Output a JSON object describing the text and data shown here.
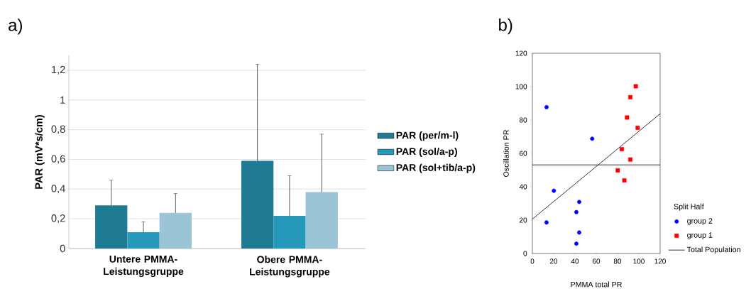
{
  "chart_data": [
    {
      "type": "bar",
      "title": "a)",
      "ylabel": "PAR (mV*s/cm)",
      "categories": [
        "Untere PMMA-Leistungsgruppe",
        "Obere PMMA-Leistungsgruppe"
      ],
      "series": [
        {
          "name": "PAR (per/m-l)",
          "color": "#1f7b93",
          "values": [
            0.29,
            0.59
          ],
          "errors": [
            [
              0.29,
              0.46
            ],
            [
              0.59,
              1.24
            ]
          ]
        },
        {
          "name": "PAR (sol/a-p)",
          "color": "#2699bb",
          "values": [
            0.11,
            0.22
          ],
          "errors": [
            [
              0.11,
              0.18
            ],
            [
              0.22,
              0.49
            ]
          ]
        },
        {
          "name": "PAR (sol+tib/a-p)",
          "color": "#9bc4d6",
          "values": [
            0.24,
            0.38
          ],
          "errors": [
            [
              0.24,
              0.37
            ],
            [
              0.38,
              0.77
            ]
          ]
        }
      ],
      "ylim": [
        0,
        1.3
      ],
      "yticks": [
        0,
        {
          "value": 0.2,
          "label": "0,2"
        },
        {
          "value": 0.4,
          "label": "0,4"
        },
        {
          "value": 0.6,
          "label": "0,6"
        },
        {
          "value": 0.8,
          "label": "0,8"
        },
        1,
        {
          "value": 1.2,
          "label": "1,2"
        }
      ],
      "grid": "y",
      "legend": "right"
    },
    {
      "type": "scatter",
      "title": "b)",
      "xlabel": "PMMA total PR",
      "ylabel": "Oscillation PR",
      "legend_title": "Split Half",
      "series": [
        {
          "name": "group 2",
          "color": "#0000ff",
          "marker": "circle",
          "x": [
            13.3,
            56.2,
            20.2,
            44,
            41.3,
            13.3,
            44,
            41.3
          ],
          "values": [
            87.7,
            68.8,
            37.6,
            30.9,
            24.8,
            18.6,
            12.6,
            5.9
          ]
        },
        {
          "name": "group 1",
          "color": "#ff0000",
          "marker": "square",
          "x": [
            97.1,
            92,
            88.9,
            98.9,
            84,
            92,
            80.2,
            86.4
          ],
          "values": [
            100.2,
            93.7,
            81.5,
            75.3,
            62.5,
            56.3,
            49.8,
            43.8
          ]
        },
        {
          "name": "Total Population",
          "type": "line",
          "color": "#000000",
          "x": [
            0,
            120
          ],
          "values": [
            20.6,
            83.7
          ]
        }
      ],
      "ref_lines": [
        {
          "axis": "y",
          "value": 53.1,
          "color": "#000000"
        }
      ],
      "xlim": [
        0,
        120
      ],
      "ylim": [
        0,
        120
      ],
      "xticks": [
        0,
        20,
        40,
        60,
        80,
        100,
        120
      ],
      "yticks": [
        0,
        20,
        40,
        60,
        80,
        100,
        120
      ],
      "legend": "bottom right"
    }
  ]
}
